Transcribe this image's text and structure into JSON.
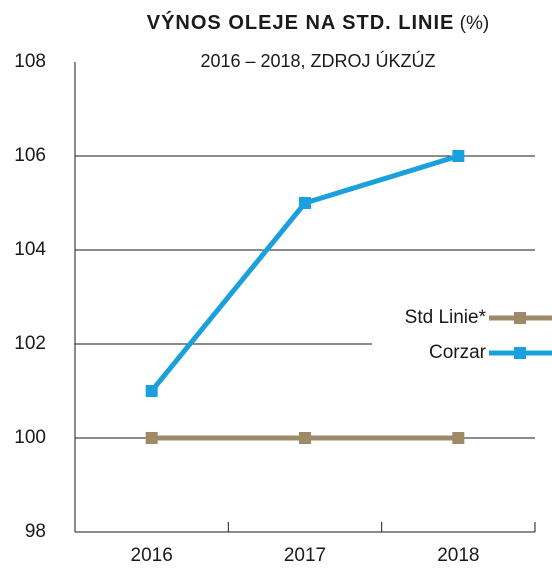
{
  "chart_data": {
    "type": "line",
    "title": "VÝNOS OLEJE NA STD. LINIE",
    "title_unit": "(%)",
    "subtitle": "2016 – 2018, ZDROJ ÚKZÚZ",
    "categories": [
      "2016",
      "2017",
      "2018"
    ],
    "series": [
      {
        "name": "Std Linie*",
        "color": "#9e8a68",
        "values": [
          100,
          100,
          100
        ]
      },
      {
        "name": "Corzar",
        "color": "#1aa0dc",
        "values": [
          101,
          105,
          106
        ]
      }
    ],
    "ylim": [
      98,
      108
    ],
    "yticks": [
      98,
      100,
      102,
      104,
      106,
      108
    ],
    "grid": true,
    "legend": "right"
  }
}
